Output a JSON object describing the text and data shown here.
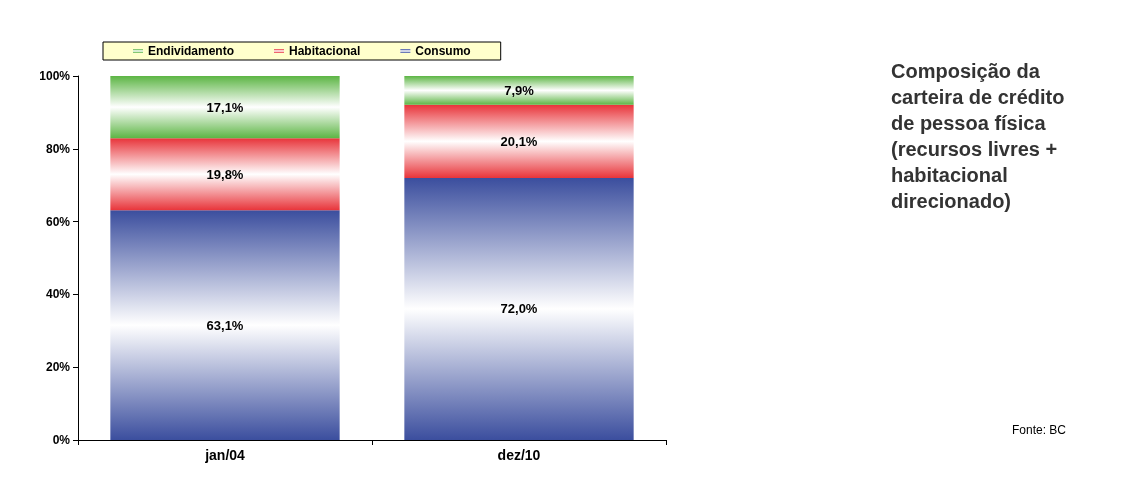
{
  "chart_data": {
    "type": "bar",
    "stacked": true,
    "title": "Composição da carteira de crédito de pessoa física (recursos livres + habitacional direcionado)",
    "annotations": [
      "Fonte: BC"
    ],
    "categories": [
      "jan/04",
      "dez/10"
    ],
    "series": [
      {
        "name": "Consumo",
        "color": "#3b4e9e",
        "values": [
          63.1,
          72.0
        ],
        "value_labels": [
          "63,1%",
          "72,0%"
        ]
      },
      {
        "name": "Habitacional",
        "color": "#e8343a",
        "values": [
          19.8,
          20.1
        ],
        "value_labels": [
          "19,8%",
          "20,1%"
        ]
      },
      {
        "name": "Endividamento",
        "color": "#5cb544",
        "values": [
          17.1,
          7.9
        ],
        "value_labels": [
          "17,1%",
          "7,9%"
        ]
      }
    ],
    "ylim": [
      0,
      100
    ],
    "yticks": [
      {
        "value": 0,
        "label": "0%"
      },
      {
        "value": 20,
        "label": "20%"
      },
      {
        "value": 40,
        "label": "40%"
      },
      {
        "value": 60,
        "label": "60%"
      },
      {
        "value": 80,
        "label": "80%"
      },
      {
        "value": 100,
        "label": "100%"
      }
    ],
    "grid": false,
    "legend": "top left"
  }
}
